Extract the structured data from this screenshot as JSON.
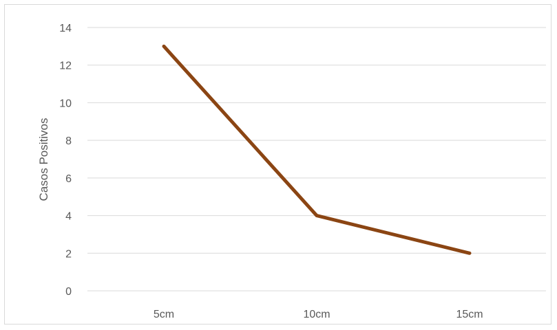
{
  "chart_data": {
    "type": "line",
    "title": "",
    "xlabel": "",
    "ylabel": "Casos Positivos",
    "categories": [
      "5cm",
      "10cm",
      "15cm"
    ],
    "series": [
      {
        "values": [
          13,
          4,
          2
        ],
        "color": "#8b4513"
      }
    ],
    "ylim": [
      0,
      14
    ],
    "yticks": [
      0,
      2,
      4,
      6,
      8,
      10,
      12,
      14
    ],
    "grid": true,
    "legend": "none",
    "colors": {
      "gridline": "#d9d9d9",
      "text": "#595959"
    }
  }
}
